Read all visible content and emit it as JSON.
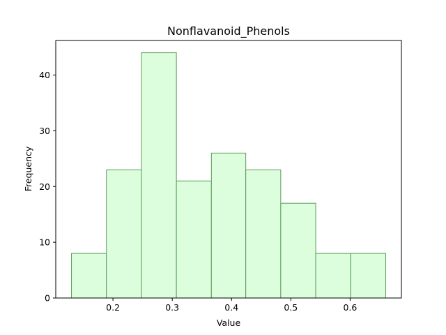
{
  "chart_data": {
    "type": "bar",
    "title": "Nonflavanoid_Phenols",
    "xlabel": "Value",
    "ylabel": "Frequency",
    "bin_edges": [
      0.13,
      0.189,
      0.248,
      0.307,
      0.366,
      0.424,
      0.483,
      0.542,
      0.601,
      0.66
    ],
    "values": [
      8,
      23,
      44,
      21,
      26,
      23,
      17,
      8,
      8
    ],
    "xlim": [
      0.1035,
      0.6865
    ],
    "ylim": [
      0,
      46.2
    ],
    "xticks": [
      0.2,
      0.3,
      0.4,
      0.5,
      0.6
    ],
    "xtick_labels": [
      "0.2",
      "0.3",
      "0.4",
      "0.5",
      "0.6"
    ],
    "yticks": [
      0,
      10,
      20,
      30,
      40
    ],
    "ytick_labels": [
      "0",
      "10",
      "20",
      "30",
      "40"
    ],
    "grid": false,
    "colors": {
      "bar_fill": "#dcfedc",
      "bar_edge": "#5b9a5b",
      "axis": "#000000"
    }
  }
}
